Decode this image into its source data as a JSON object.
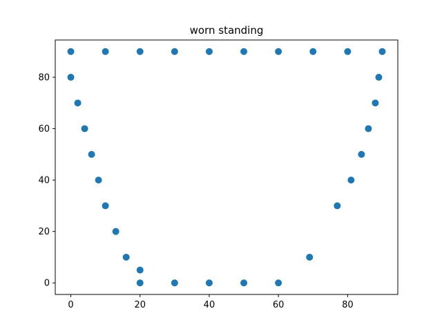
{
  "chart_data": {
    "type": "scatter",
    "title": "worn standing",
    "xlabel": "",
    "ylabel": "",
    "xlim": [
      -4.5,
      94.5
    ],
    "ylim": [
      -4.5,
      94.5
    ],
    "xticks": [
      0,
      20,
      40,
      60,
      80
    ],
    "yticks": [
      0,
      20,
      40,
      60,
      80
    ],
    "grid": false,
    "legend": "none",
    "marker_color": "#1f77b4",
    "series": [
      {
        "points": [
          [
            0,
            90
          ],
          [
            10,
            90
          ],
          [
            20,
            90
          ],
          [
            30,
            90
          ],
          [
            40,
            90
          ],
          [
            50,
            90
          ],
          [
            60,
            90
          ],
          [
            70,
            90
          ],
          [
            80,
            90
          ],
          [
            90,
            90
          ],
          [
            0,
            80
          ],
          [
            2,
            70
          ],
          [
            4,
            60
          ],
          [
            6,
            50
          ],
          [
            8,
            40
          ],
          [
            10,
            30
          ],
          [
            13,
            20
          ],
          [
            16,
            10
          ],
          [
            20,
            5
          ],
          [
            20,
            0
          ],
          [
            30,
            0
          ],
          [
            40,
            0
          ],
          [
            50,
            0
          ],
          [
            60,
            0
          ],
          [
            69,
            10
          ],
          [
            77,
            30
          ],
          [
            81,
            40
          ],
          [
            84,
            50
          ],
          [
            86,
            60
          ],
          [
            88,
            70
          ],
          [
            89,
            80
          ]
        ]
      }
    ]
  }
}
